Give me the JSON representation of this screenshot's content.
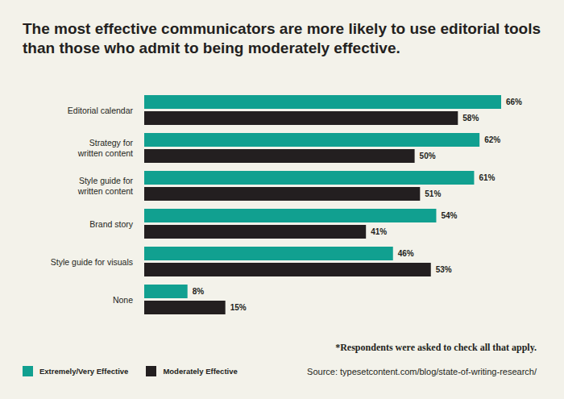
{
  "chart_data": {
    "type": "bar",
    "orientation": "horizontal",
    "title": "The most effective communicators are more likely to use editorial tools than those who admit to being moderately effective.",
    "categories": [
      "Editorial calendar",
      "Strategy for written content",
      "Style guide for written content",
      "Brand story",
      "Style guide for visuals",
      "None"
    ],
    "series": [
      {
        "name": "Extremely/Very Effective",
        "color": "#11a090",
        "values": [
          66,
          62,
          61,
          54,
          46,
          8
        ],
        "value_labels": [
          "66%",
          "62%",
          "61%",
          "54%",
          "46%",
          "8%"
        ]
      },
      {
        "name": "Moderately Effective",
        "color": "#231f20",
        "values": [
          58,
          50,
          51,
          41,
          53,
          15
        ],
        "value_labels": [
          "58%",
          "50%",
          "51%",
          "41%",
          "53%",
          "15%"
        ]
      }
    ],
    "data_labels": true,
    "tick_labels": "y",
    "legend": "bottom left",
    "annotations": [
      "*Respondents were asked to check all that apply.",
      "Source: typesetcontent.com/blog/state-of-writing-research/"
    ]
  }
}
